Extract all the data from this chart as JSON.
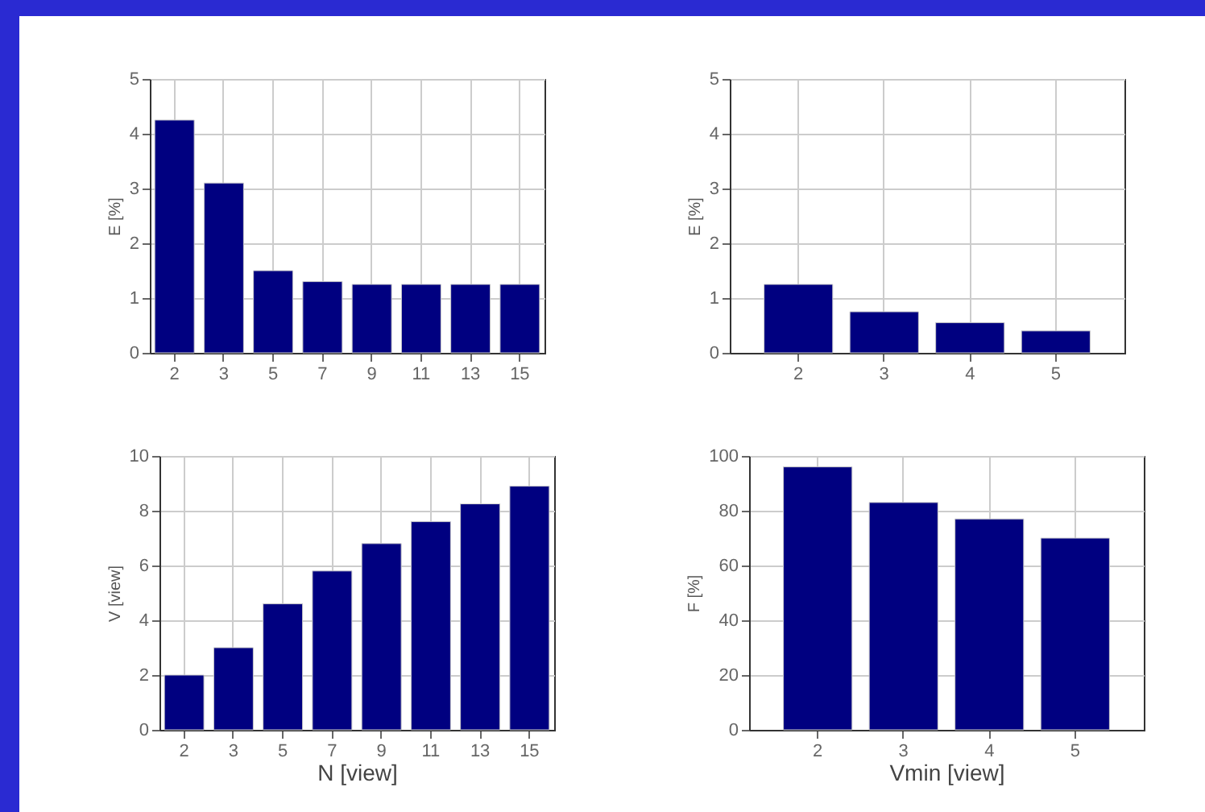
{
  "chart_data": [
    {
      "type": "bar",
      "ylabel": "E [%]",
      "categories": [
        "2",
        "3",
        "5",
        "7",
        "9",
        "11",
        "13",
        "15"
      ],
      "values": [
        4.25,
        3.1,
        1.5,
        1.3,
        1.25,
        1.25,
        1.25,
        1.25
      ],
      "color": "#000080",
      "ylim": [
        0,
        5
      ],
      "yticks": [
        0,
        1,
        2,
        3,
        4,
        5
      ],
      "grid": true
    },
    {
      "type": "bar",
      "ylabel": "E [%]",
      "categories": [
        "2",
        "3",
        "4",
        "5"
      ],
      "values": [
        1.25,
        0.75,
        0.55,
        0.4
      ],
      "color": "#000080",
      "ylim": [
        0,
        5
      ],
      "yticks": [
        0,
        1,
        2,
        3,
        4,
        5
      ],
      "grid": true
    },
    {
      "type": "bar",
      "xlabel": "N [view]",
      "ylabel": "V [view]",
      "categories": [
        "2",
        "3",
        "5",
        "7",
        "9",
        "11",
        "13",
        "15"
      ],
      "values": [
        2.0,
        3.0,
        4.6,
        5.8,
        6.8,
        7.6,
        8.25,
        8.9
      ],
      "color": "#000080",
      "ylim": [
        0,
        10
      ],
      "yticks": [
        0,
        2,
        4,
        6,
        8,
        10
      ],
      "grid": true
    },
    {
      "type": "bar",
      "xlabel": "Vmin [view]",
      "ylabel": "F [%]",
      "categories": [
        "2",
        "3",
        "4",
        "5"
      ],
      "values": [
        96,
        83,
        77,
        70
      ],
      "color": "#000080",
      "ylim": [
        0,
        100
      ],
      "yticks": [
        0,
        20,
        40,
        60,
        80,
        100
      ],
      "grid": true
    }
  ]
}
